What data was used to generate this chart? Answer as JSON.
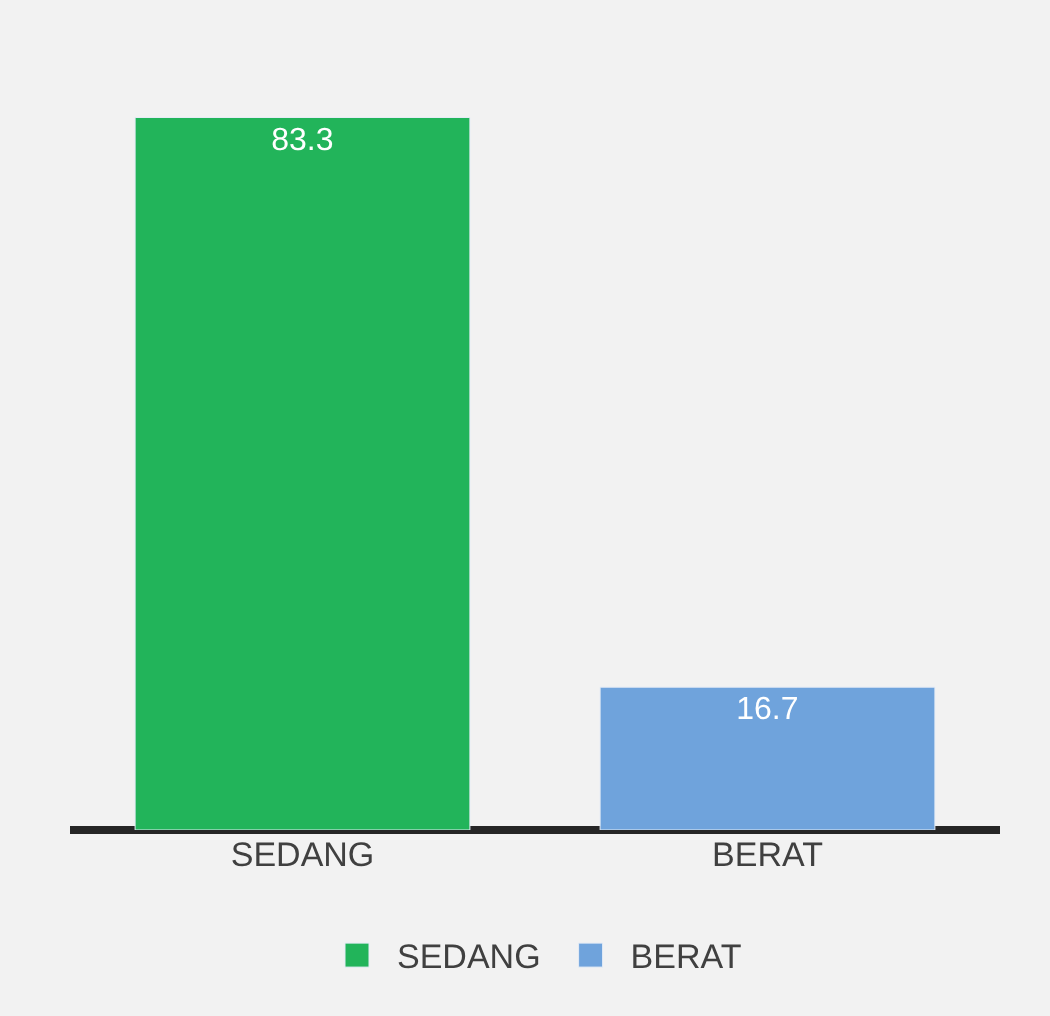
{
  "chart_data": {
    "type": "bar",
    "categories": [
      "SEDANG",
      "BERAT"
    ],
    "series": [
      {
        "name": "SEDANG",
        "color": "#22b45a",
        "values": [
          83.3,
          null
        ]
      },
      {
        "name": "BERAT",
        "color": "#6fa3dc",
        "values": [
          null,
          16.7
        ]
      }
    ],
    "tick_labels": "x",
    "legend": "bottom",
    "data_labels": true
  }
}
